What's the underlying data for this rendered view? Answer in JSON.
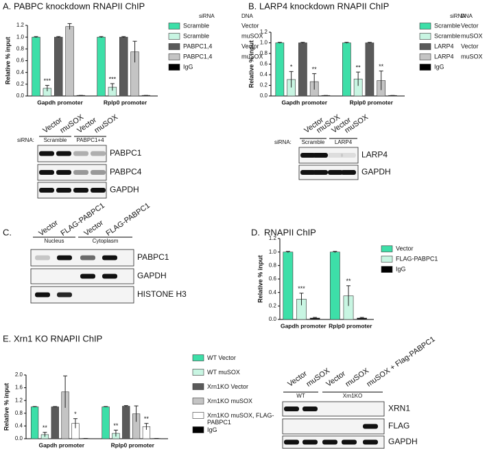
{
  "chart_data": [
    {
      "type": "bar",
      "panel": "A.",
      "title": "PABPC knockdown RNAPII ChIP",
      "y_label": "Relative % input",
      "categories": [
        "Gapdh promoter",
        "Rplp0 promoter"
      ],
      "ylim": [
        0,
        1.2
      ],
      "yticks": [
        {
          "value": 0,
          "label": "0.0"
        },
        0.2,
        0.4,
        0.6,
        0.8,
        {
          "value": 1,
          "label": "1.0"
        },
        1.2
      ],
      "legend_headers": [
        "siRNA",
        "DNA"
      ],
      "series": [
        {
          "name": "Scramble",
          "dna": "Vector",
          "color": "#3ddfa8",
          "values": [
            1,
            1
          ],
          "errors": [
            0.01,
            0.01
          ]
        },
        {
          "name": "Scramble",
          "dna": "muSOX",
          "color": "#c8f5e2",
          "values": [
            0.13,
            0.15
          ],
          "errors": [
            0.05,
            0.06
          ],
          "stars": [
            "***",
            "***"
          ]
        },
        {
          "name": "PABPC1,4",
          "dna": "Vector",
          "color": "#5a5a5a",
          "values": [
            1,
            1
          ],
          "errors": [
            0.01,
            0.01
          ]
        },
        {
          "name": "PABPC1,4",
          "dna": "muSOX",
          "color": "#c4c4c4",
          "values": [
            1.18,
            0.75
          ],
          "errors": [
            0.05,
            0.18
          ]
        },
        {
          "name": "IgG",
          "color": "#000000",
          "values": [
            0.01,
            0.01
          ],
          "errors": [
            0,
            0
          ]
        }
      ]
    },
    {
      "type": "bar",
      "panel": "B.",
      "title": "LARP4 knockdown RNAPII ChIP",
      "y_label": "Relative % input",
      "categories": [
        "Gapdh promoter",
        "Rplp0 promoter"
      ],
      "ylim": [
        0,
        1.2
      ],
      "yticks": [
        {
          "value": 0,
          "label": "0.0"
        },
        0.2,
        0.4,
        0.6,
        0.8,
        {
          "value": 1,
          "label": "1.0"
        },
        1.2
      ],
      "legend_headers": [
        "siRNA",
        "DNA"
      ],
      "series": [
        {
          "name": "Scramble",
          "dna": "Vector",
          "color": "#3ddfa8",
          "values": [
            1,
            1
          ],
          "errors": [
            0.01,
            0.01
          ]
        },
        {
          "name": "Scramble",
          "dna": "muSOX",
          "color": "#c8f5e2",
          "values": [
            0.31,
            0.32
          ],
          "errors": [
            0.15,
            0.13
          ],
          "stars": [
            "*",
            "**"
          ]
        },
        {
          "name": "LARP4",
          "dna": "Vector",
          "color": "#5a5a5a",
          "values": [
            1,
            1
          ],
          "errors": [
            0.01,
            0.01
          ]
        },
        {
          "name": "LARP4",
          "dna": "muSOX",
          "color": "#c4c4c4",
          "values": [
            0.27,
            0.29
          ],
          "errors": [
            0.15,
            0.18
          ],
          "stars": [
            "**",
            "**"
          ]
        },
        {
          "name": "IgG",
          "color": "#000000",
          "values": [
            0.01,
            0.01
          ],
          "errors": [
            0,
            0
          ]
        }
      ]
    },
    {
      "type": "bar",
      "panel": "D.",
      "title": "RNAPII ChIP",
      "y_label": "Relative % input",
      "categories": [
        "Gapdh promoter",
        "Rplp0 promoter"
      ],
      "ylim": [
        0,
        1.2
      ],
      "yticks": [
        {
          "value": 0,
          "label": "0.0"
        },
        0.2,
        0.4,
        0.6,
        0.8,
        {
          "value": 1,
          "label": "1.0"
        },
        1.2
      ],
      "series": [
        {
          "name": "Vector",
          "color": "#3ddfa8",
          "values": [
            1,
            1
          ],
          "errors": [
            0.01,
            0.01
          ]
        },
        {
          "name": "FLAG-PABPC1",
          "color": "#c8f5e2",
          "values": [
            0.3,
            0.35
          ],
          "errors": [
            0.09,
            0.15
          ],
          "stars": [
            "***",
            "**"
          ]
        },
        {
          "name": "IgG",
          "color": "#000000",
          "values": [
            0.02,
            0.02
          ],
          "errors": [
            0.01,
            0.01
          ]
        }
      ]
    },
    {
      "type": "bar",
      "panel": "E.",
      "title": "Xrn1 KO RNAPII ChIP",
      "y_label": "Relative % input",
      "categories": [
        "Gapdh promoter",
        "Rplp0 promoter"
      ],
      "ylim": [
        0,
        2
      ],
      "yticks": [
        {
          "value": 0,
          "label": "0.0"
        },
        0.4,
        0.8,
        1.2,
        1.6,
        {
          "value": 2,
          "label": "2.0"
        }
      ],
      "series": [
        {
          "name": "WT Vector",
          "color": "#3ddfa8",
          "values": [
            1,
            1
          ],
          "errors": [
            0.01,
            0.01
          ]
        },
        {
          "name": "WT muSOX",
          "color": "#c8f5e2",
          "values": [
            0.13,
            0.17
          ],
          "errors": [
            0.07,
            0.1
          ],
          "stars": [
            "**",
            "**"
          ]
        },
        {
          "name": "Xrn1KO Vector",
          "color": "#5a5a5a",
          "values": [
            1,
            1.02
          ],
          "errors": [
            0.01,
            0.02
          ]
        },
        {
          "name": "Xrn1KO muSOX",
          "color": "#c4c4c4",
          "values": [
            1.47,
            0.78
          ],
          "errors": [
            0.5,
            0.25
          ]
        },
        {
          "name": "Xrn1KO muSOX, FLAG-PABPC1",
          "color": "#ffffff",
          "values": [
            0.48,
            0.38
          ],
          "errors": [
            0.15,
            0.1
          ],
          "stars": [
            "*",
            "**"
          ]
        },
        {
          "name": "IgG",
          "color": "#000000",
          "values": [
            0.01,
            0.01
          ],
          "errors": [
            0,
            0
          ]
        }
      ]
    }
  ],
  "blots": [
    {
      "lanes": [
        "Vector",
        "muSOX",
        "Vector",
        "muSOX"
      ],
      "prefix": "siRNA:",
      "groups": [
        "Scramble",
        "PABPC1+4"
      ],
      "rows": [
        "PABPC1",
        "PABPC4",
        "GAPDH"
      ]
    },
    {
      "lanes": [
        "Vector",
        "muSOX",
        "Vector",
        "muSOX"
      ],
      "prefix": "siRNA:",
      "groups": [
        "Scramble",
        "LARP4"
      ],
      "rows": [
        "LARP4",
        "GAPDH"
      ]
    },
    {
      "panel": "C.",
      "lanes": [
        "Vector",
        "FLAG-PABPC1",
        "Vector",
        "FLAG-PABPC1"
      ],
      "groups": [
        "Nucleus",
        "Cytoplasm"
      ],
      "rows": [
        "PABPC1",
        "GAPDH",
        "HISTONE H3"
      ]
    },
    {
      "lanes": [
        "Vector",
        "muSOX",
        "Vector",
        "muSOX",
        "muSOX + Flag-PABPC1"
      ],
      "groups": [
        "WT",
        "Xrn1KO"
      ],
      "rows": [
        "XRN1",
        "FLAG",
        "GAPDH"
      ]
    }
  ]
}
